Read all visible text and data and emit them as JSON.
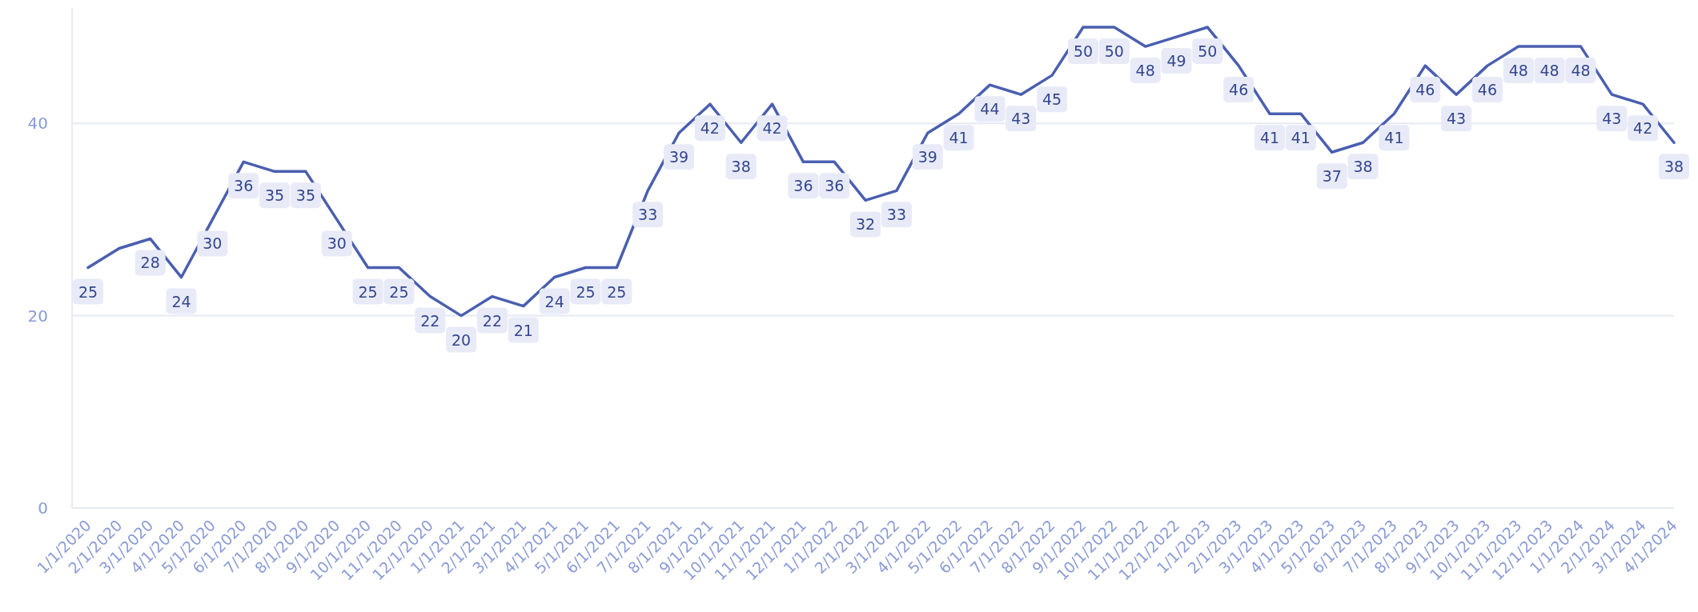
{
  "chart_data": {
    "type": "line",
    "categories": [
      "1/1/2020",
      "2/1/2020",
      "3/1/2020",
      "4/1/2020",
      "5/1/2020",
      "6/1/2020",
      "7/1/2020",
      "8/1/2020",
      "9/1/2020",
      "10/1/2020",
      "11/1/2020",
      "12/1/2020",
      "1/1/2021",
      "2/1/2021",
      "3/1/2021",
      "4/1/2021",
      "5/1/2021",
      "6/1/2021",
      "7/1/2021",
      "8/1/2021",
      "9/1/2021",
      "10/1/2021",
      "11/1/2021",
      "12/1/2021",
      "1/1/2022",
      "2/1/2022",
      "3/1/2022",
      "4/1/2022",
      "5/1/2022",
      "6/1/2022",
      "7/1/2022",
      "8/1/2022",
      "9/1/2022",
      "10/1/2022",
      "11/1/2022",
      "12/1/2022",
      "1/1/2023",
      "2/1/2023",
      "3/1/2023",
      "4/1/2023",
      "5/1/2023",
      "6/1/2023",
      "7/1/2023",
      "8/1/2023",
      "9/1/2023",
      "10/1/2023",
      "11/1/2023",
      "12/1/2023",
      "1/1/2024",
      "2/1/2024",
      "3/1/2024",
      "4/1/2024"
    ],
    "series": [
      {
        "color": "#4a5fb0",
        "values": [
          25,
          27,
          28,
          24,
          30,
          36,
          35,
          35,
          30,
          25,
          25,
          22,
          20,
          22,
          21,
          24,
          25,
          25,
          33,
          39,
          42,
          38,
          42,
          36,
          36,
          32,
          33,
          39,
          41,
          44,
          43,
          45,
          50,
          50,
          48,
          49,
          50,
          46,
          41,
          41,
          37,
          38,
          41,
          46,
          43,
          46,
          48,
          48,
          48,
          43,
          42,
          38
        ],
        "value_labels": [
          "25",
          null,
          "28",
          "24",
          "30",
          "36",
          "35",
          "35",
          "30",
          "25",
          "25",
          "22",
          "20",
          "22",
          "21",
          "24",
          "25",
          "25",
          "33",
          "39",
          "42",
          "38",
          "42",
          "36",
          "36",
          "32",
          "33",
          "39",
          "41",
          "44",
          "43",
          "45",
          "50",
          "50",
          "48",
          "49",
          "50",
          "46",
          "41",
          "41",
          "37",
          "38",
          "41",
          "46",
          "43",
          "46",
          "48",
          "48",
          "48",
          "43",
          "42",
          "38"
        ]
      }
    ],
    "ylim": [
      0,
      52
    ],
    "yticks": [
      0,
      20,
      40
    ],
    "grid": "y",
    "marker": "none",
    "line_style": "solid"
  }
}
